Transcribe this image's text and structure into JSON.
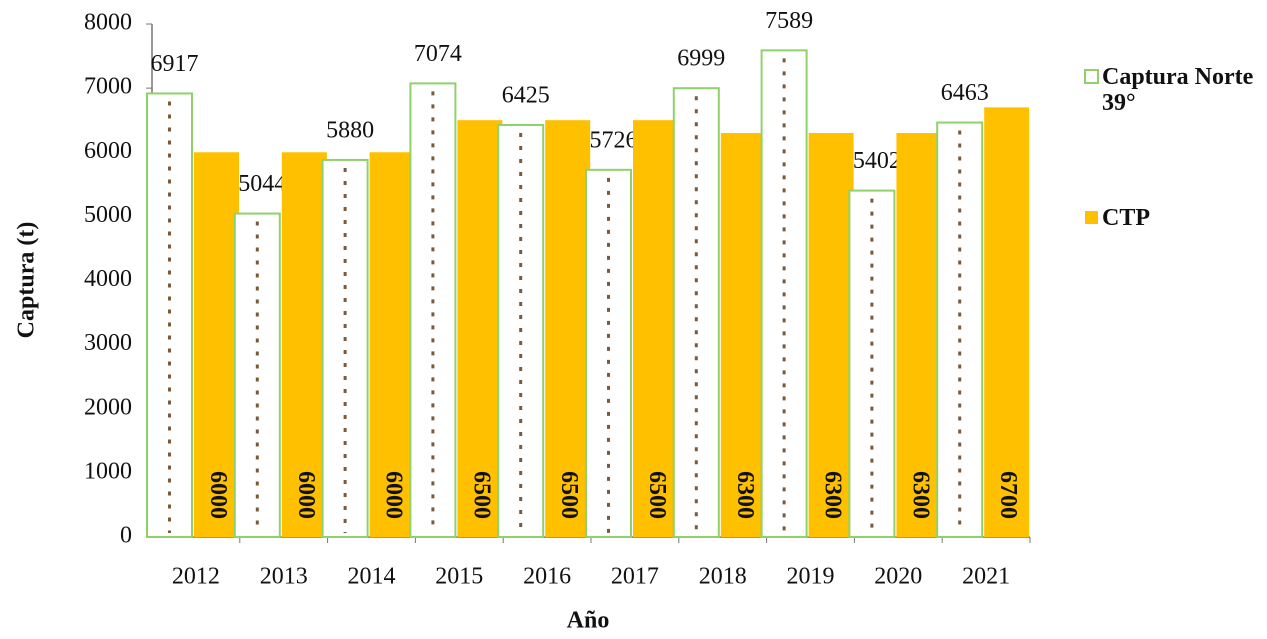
{
  "chart_data": {
    "type": "bar",
    "y_label": "Captura (t)",
    "x_label": "Año",
    "categories": [
      "2012",
      "2013",
      "2014",
      "2015",
      "2016",
      "2017",
      "2018",
      "2019",
      "2020",
      "2021"
    ],
    "series": [
      {
        "name": "Captura Norte 39°",
        "color": "#8fd16a",
        "values": [
          6917,
          5044,
          5880,
          7074,
          6425,
          5726,
          6999,
          7589,
          5402,
          6463
        ]
      },
      {
        "name": "CTP",
        "color": "#ffc000",
        "values": [
          6000,
          6000,
          6000,
          6500,
          6500,
          6500,
          6300,
          6300,
          6300,
          6700
        ]
      }
    ],
    "ylim": [
      0,
      8000
    ],
    "yticks": [
      0,
      1000,
      2000,
      3000,
      4000,
      5000,
      6000,
      7000,
      8000
    ]
  }
}
